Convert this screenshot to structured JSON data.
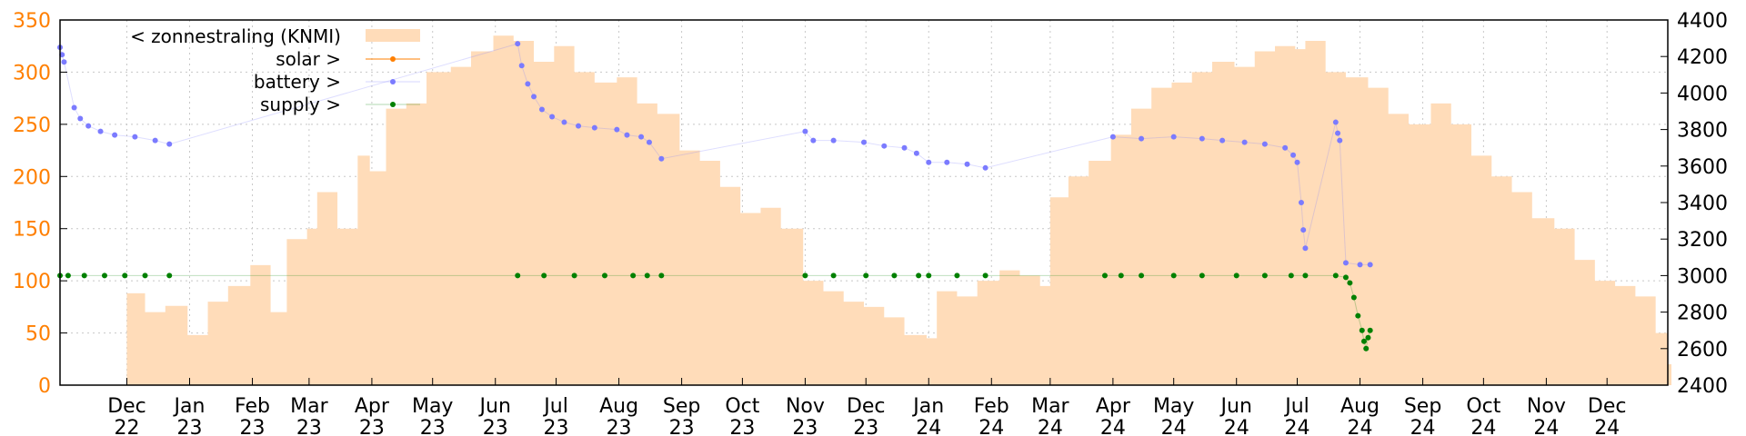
{
  "chart_data": {
    "type": "area",
    "grid": true,
    "legend_position": "top-left",
    "x_axis": {
      "range": [
        "2022-10-29",
        "2024-12-31"
      ],
      "tick_labels": [
        {
          "month": "Dec",
          "year": "22",
          "date": "2022-12-01"
        },
        {
          "month": "Jan",
          "year": "23",
          "date": "2023-01-01"
        },
        {
          "month": "Feb",
          "year": "23",
          "date": "2023-02-01"
        },
        {
          "month": "Mar",
          "year": "23",
          "date": "2023-03-01"
        },
        {
          "month": "Apr",
          "year": "23",
          "date": "2023-04-01"
        },
        {
          "month": "May",
          "year": "23",
          "date": "2023-05-01"
        },
        {
          "month": "Jun",
          "year": "23",
          "date": "2023-06-01"
        },
        {
          "month": "Jul",
          "year": "23",
          "date": "2023-07-01"
        },
        {
          "month": "Aug",
          "year": "23",
          "date": "2023-08-01"
        },
        {
          "month": "Sep",
          "year": "23",
          "date": "2023-09-01"
        },
        {
          "month": "Oct",
          "year": "23",
          "date": "2023-10-01"
        },
        {
          "month": "Nov",
          "year": "23",
          "date": "2023-11-01"
        },
        {
          "month": "Dec",
          "year": "23",
          "date": "2023-12-01"
        },
        {
          "month": "Jan",
          "year": "24",
          "date": "2024-01-01"
        },
        {
          "month": "Feb",
          "year": "24",
          "date": "2024-02-01"
        },
        {
          "month": "Mar",
          "year": "24",
          "date": "2024-03-01"
        },
        {
          "month": "Apr",
          "year": "24",
          "date": "2024-04-01"
        },
        {
          "month": "May",
          "year": "24",
          "date": "2024-05-01"
        },
        {
          "month": "Jun",
          "year": "24",
          "date": "2024-06-01"
        },
        {
          "month": "Jul",
          "year": "24",
          "date": "2024-07-01"
        },
        {
          "month": "Aug",
          "year": "24",
          "date": "2024-08-01"
        },
        {
          "month": "Sep",
          "year": "24",
          "date": "2024-09-01"
        },
        {
          "month": "Oct",
          "year": "24",
          "date": "2024-10-01"
        },
        {
          "month": "Nov",
          "year": "24",
          "date": "2024-11-01"
        },
        {
          "month": "Dec",
          "year": "24",
          "date": "2024-12-01"
        }
      ]
    },
    "y_left": {
      "range": [
        0,
        350
      ],
      "ticks": [
        "0",
        "50",
        "100",
        "150",
        "200",
        "250",
        "300",
        "350"
      ],
      "color": "#ff7f00"
    },
    "y_right": {
      "range": [
        2400,
        4400
      ],
      "ticks": [
        "2400",
        "2600",
        "2800",
        "3000",
        "3200",
        "3400",
        "3600",
        "3800",
        "4000",
        "4200",
        "4400"
      ],
      "color": "#000000"
    },
    "legend": [
      {
        "key": "zonnestraling",
        "label": "< zonnestraling (KNMI)",
        "style": "fill",
        "color": "#ffdcb9"
      },
      {
        "key": "solar",
        "label": "solar >",
        "style": "linepoint",
        "color": "#ff7f00"
      },
      {
        "key": "battery",
        "label": "battery >",
        "style": "point",
        "color": "#7b7bff"
      },
      {
        "key": "supply",
        "label": "supply >",
        "style": "point",
        "color": "#008000"
      }
    ],
    "series": [
      {
        "name": "< zonnestraling (KNMI)",
        "axis": "left",
        "type": "area",
        "color": "#ffdcb9",
        "points": [
          [
            "2022-12-01",
            88
          ],
          [
            "2022-12-10",
            70
          ],
          [
            "2022-12-20",
            76
          ],
          [
            "2022-12-31",
            48
          ],
          [
            "2023-01-10",
            80
          ],
          [
            "2023-01-20",
            95
          ],
          [
            "2023-01-31",
            115
          ],
          [
            "2023-02-10",
            70
          ],
          [
            "2023-02-18",
            140
          ],
          [
            "2023-02-28",
            150
          ],
          [
            "2023-03-05",
            185
          ],
          [
            "2023-03-15",
            150
          ],
          [
            "2023-03-25",
            220
          ],
          [
            "2023-03-31",
            205
          ],
          [
            "2023-04-08",
            265
          ],
          [
            "2023-04-18",
            270
          ],
          [
            "2023-04-28",
            300
          ],
          [
            "2023-05-10",
            305
          ],
          [
            "2023-05-20",
            320
          ],
          [
            "2023-05-31",
            335
          ],
          [
            "2023-06-10",
            330
          ],
          [
            "2023-06-20",
            310
          ],
          [
            "2023-06-30",
            325
          ],
          [
            "2023-07-10",
            300
          ],
          [
            "2023-07-20",
            290
          ],
          [
            "2023-07-31",
            295
          ],
          [
            "2023-08-10",
            270
          ],
          [
            "2023-08-20",
            260
          ],
          [
            "2023-08-31",
            225
          ],
          [
            "2023-09-10",
            215
          ],
          [
            "2023-09-20",
            190
          ],
          [
            "2023-09-30",
            165
          ],
          [
            "2023-10-10",
            170
          ],
          [
            "2023-10-20",
            150
          ],
          [
            "2023-10-31",
            100
          ],
          [
            "2023-11-10",
            90
          ],
          [
            "2023-11-20",
            80
          ],
          [
            "2023-11-30",
            75
          ],
          [
            "2023-12-10",
            65
          ],
          [
            "2023-12-20",
            48
          ],
          [
            "2023-12-31",
            45
          ],
          [
            "2024-01-05",
            90
          ],
          [
            "2024-01-15",
            85
          ],
          [
            "2024-01-25",
            100
          ],
          [
            "2024-02-05",
            110
          ],
          [
            "2024-02-15",
            105
          ],
          [
            "2024-02-25",
            95
          ],
          [
            "2024-03-01",
            180
          ],
          [
            "2024-03-10",
            200
          ],
          [
            "2024-03-20",
            215
          ],
          [
            "2024-03-31",
            240
          ],
          [
            "2024-04-10",
            265
          ],
          [
            "2024-04-20",
            285
          ],
          [
            "2024-04-30",
            290
          ],
          [
            "2024-05-10",
            300
          ],
          [
            "2024-05-20",
            310
          ],
          [
            "2024-05-31",
            305
          ],
          [
            "2024-06-10",
            320
          ],
          [
            "2024-06-20",
            325
          ],
          [
            "2024-06-30",
            322
          ],
          [
            "2024-07-05",
            330
          ],
          [
            "2024-07-15",
            300
          ],
          [
            "2024-07-25",
            295
          ],
          [
            "2024-08-05",
            285
          ],
          [
            "2024-08-15",
            260
          ],
          [
            "2024-08-25",
            250
          ],
          [
            "2024-09-05",
            270
          ],
          [
            "2024-09-15",
            250
          ],
          [
            "2024-09-25",
            220
          ],
          [
            "2024-10-05",
            200
          ],
          [
            "2024-10-15",
            185
          ],
          [
            "2024-10-25",
            160
          ],
          [
            "2024-11-05",
            150
          ],
          [
            "2024-11-15",
            120
          ],
          [
            "2024-11-25",
            100
          ],
          [
            "2024-12-05",
            95
          ],
          [
            "2024-12-15",
            85
          ],
          [
            "2024-12-25",
            50
          ],
          [
            "2024-12-31",
            20
          ]
        ]
      },
      {
        "name": "battery >",
        "axis": "right",
        "type": "scatter",
        "color": "#7b7bff",
        "points": [
          [
            "2022-10-29",
            4250
          ],
          [
            "2022-10-30",
            4210
          ],
          [
            "2022-10-31",
            4170
          ],
          [
            "2022-11-05",
            3920
          ],
          [
            "2022-11-08",
            3860
          ],
          [
            "2022-11-12",
            3820
          ],
          [
            "2022-11-18",
            3790
          ],
          [
            "2022-11-25",
            3770
          ],
          [
            "2022-12-05",
            3760
          ],
          [
            "2022-12-15",
            3740
          ],
          [
            "2022-12-22",
            3720
          ],
          [
            "2023-06-12",
            4270
          ],
          [
            "2023-06-14",
            4150
          ],
          [
            "2023-06-17",
            4050
          ],
          [
            "2023-06-20",
            3980
          ],
          [
            "2023-06-24",
            3910
          ],
          [
            "2023-06-29",
            3870
          ],
          [
            "2023-07-05",
            3840
          ],
          [
            "2023-07-12",
            3820
          ],
          [
            "2023-07-20",
            3810
          ],
          [
            "2023-07-31",
            3800
          ],
          [
            "2023-08-05",
            3770
          ],
          [
            "2023-08-12",
            3760
          ],
          [
            "2023-08-16",
            3730
          ],
          [
            "2023-08-22",
            3640
          ],
          [
            "2023-11-01",
            3790
          ],
          [
            "2023-11-05",
            3740
          ],
          [
            "2023-11-15",
            3740
          ],
          [
            "2023-11-30",
            3730
          ],
          [
            "2023-12-10",
            3710
          ],
          [
            "2023-12-20",
            3700
          ],
          [
            "2023-12-26",
            3670
          ],
          [
            "2024-01-01",
            3620
          ],
          [
            "2024-01-10",
            3620
          ],
          [
            "2024-01-20",
            3610
          ],
          [
            "2024-01-29",
            3590
          ],
          [
            "2024-04-01",
            3760
          ],
          [
            "2024-04-15",
            3750
          ],
          [
            "2024-05-01",
            3760
          ],
          [
            "2024-05-15",
            3750
          ],
          [
            "2024-05-25",
            3740
          ],
          [
            "2024-06-05",
            3730
          ],
          [
            "2024-06-15",
            3720
          ],
          [
            "2024-06-25",
            3700
          ],
          [
            "2024-06-29",
            3660
          ],
          [
            "2024-07-01",
            3620
          ],
          [
            "2024-07-03",
            3400
          ],
          [
            "2024-07-04",
            3250
          ],
          [
            "2024-07-05",
            3150
          ],
          [
            "2024-07-20",
            3840
          ],
          [
            "2024-07-21",
            3780
          ],
          [
            "2024-07-22",
            3740
          ],
          [
            "2024-07-25",
            3070
          ],
          [
            "2024-08-01",
            3060
          ],
          [
            "2024-08-06",
            3060
          ]
        ]
      },
      {
        "name": "supply >",
        "axis": "right",
        "type": "scatter",
        "color": "#008000",
        "points": [
          [
            "2022-10-29",
            3000
          ],
          [
            "2022-11-02",
            3000
          ],
          [
            "2022-11-10",
            3000
          ],
          [
            "2022-11-20",
            3000
          ],
          [
            "2022-11-30",
            3000
          ],
          [
            "2022-12-10",
            3000
          ],
          [
            "2022-12-22",
            3000
          ],
          [
            "2023-06-12",
            3000
          ],
          [
            "2023-06-25",
            3000
          ],
          [
            "2023-07-10",
            3000
          ],
          [
            "2023-07-25",
            3000
          ],
          [
            "2023-08-08",
            3000
          ],
          [
            "2023-08-15",
            3000
          ],
          [
            "2023-08-22",
            3000
          ],
          [
            "2023-11-01",
            3000
          ],
          [
            "2023-11-15",
            3000
          ],
          [
            "2023-12-01",
            3000
          ],
          [
            "2023-12-15",
            3000
          ],
          [
            "2023-12-27",
            3000
          ],
          [
            "2024-01-01",
            3000
          ],
          [
            "2024-01-15",
            3000
          ],
          [
            "2024-01-29",
            3000
          ],
          [
            "2024-03-28",
            3000
          ],
          [
            "2024-04-05",
            3000
          ],
          [
            "2024-04-15",
            3000
          ],
          [
            "2024-05-01",
            3000
          ],
          [
            "2024-05-15",
            3000
          ],
          [
            "2024-06-01",
            3000
          ],
          [
            "2024-06-15",
            3000
          ],
          [
            "2024-06-28",
            3000
          ],
          [
            "2024-07-05",
            3000
          ],
          [
            "2024-07-20",
            3000
          ],
          [
            "2024-07-25",
            2990
          ],
          [
            "2024-07-27",
            2960
          ],
          [
            "2024-07-29",
            2880
          ],
          [
            "2024-07-31",
            2780
          ],
          [
            "2024-08-02",
            2700
          ],
          [
            "2024-08-03",
            2640
          ],
          [
            "2024-08-04",
            2600
          ],
          [
            "2024-08-05",
            2660
          ],
          [
            "2024-08-06",
            2700
          ]
        ]
      }
    ]
  }
}
